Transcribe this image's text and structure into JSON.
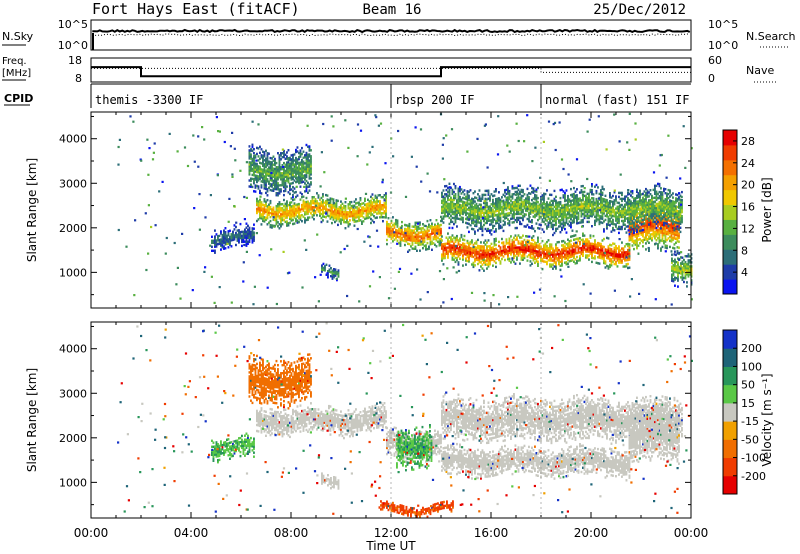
{
  "header": {
    "station": "Fort Hays East (fitACF)",
    "beam": "Beam 16",
    "date": "25/Dec/2012"
  },
  "top_panels": {
    "nsky": {
      "left_label": "N.Sky",
      "right_label": "N.Search",
      "left_ticks": [
        "10^5",
        "10^0"
      ],
      "right_ticks": [
        "10^5",
        "10^0"
      ]
    },
    "freq": {
      "left_label_1": "Freq.",
      "left_label_2": "[MHz]",
      "right_label": "Nave",
      "left_ticks": [
        "18",
        "8"
      ],
      "right_ticks": [
        "60",
        "0"
      ],
      "freq_steps": [
        {
          "start_h": 0.0,
          "end_h": 2.0,
          "mhz": 14.2
        },
        {
          "start_h": 2.0,
          "end_h": 14.0,
          "mhz": 10.4
        },
        {
          "start_h": 14.0,
          "end_h": 24.0,
          "mhz": 14.2
        }
      ],
      "nave_steps": [
        {
          "start_h": 0.0,
          "end_h": 2.0,
          "value": 34
        },
        {
          "start_h": 2.0,
          "end_h": 18.0,
          "value": 34
        },
        {
          "start_h": 18.0,
          "end_h": 24.0,
          "value": 24
        }
      ]
    },
    "cpid": {
      "label": "CPID",
      "segments": [
        {
          "start_h": 0.0,
          "text": "themis -3300 IF"
        },
        {
          "start_h": 12.0,
          "text": "rbsp 200 IF"
        },
        {
          "start_h": 18.0,
          "text": "normal (fast) 151 IF"
        }
      ]
    }
  },
  "chart_data": [
    {
      "type": "heatmap",
      "title": "",
      "xlabel": "Time UT",
      "ylabel": "Slant Range [km]",
      "xlim": [
        0,
        24
      ],
      "ylim": [
        200,
        4600
      ],
      "yticks": [
        "1000",
        "2000",
        "3000",
        "4000"
      ],
      "xticks": [
        "00:00",
        "04:00",
        "08:00",
        "12:00",
        "16:00",
        "20:00",
        "00:00"
      ],
      "colorbar": {
        "label": "Power [dB]",
        "ticks": [
          "4",
          "8",
          "12",
          "16",
          "20",
          "24",
          "28"
        ],
        "range": [
          0,
          30
        ],
        "colors": [
          "#0a14f0",
          "#1e3ca8",
          "#2c6e78",
          "#3c8c5c",
          "#58b040",
          "#a8cc20",
          "#f0c800",
          "#f4a000",
          "#f47000",
          "#f03c00",
          "#e60000"
        ]
      },
      "echo_regions": [
        {
          "t0": 6.6,
          "t1": 11.8,
          "r_lo": 2050,
          "r_hi": 2700,
          "peak": 22
        },
        {
          "t0": 11.8,
          "t1": 14.0,
          "r_lo": 1500,
          "r_hi": 2200,
          "peak": 24
        },
        {
          "t0": 14.0,
          "t1": 21.5,
          "r_lo": 1100,
          "r_hi": 1800,
          "peak": 28
        },
        {
          "t0": 21.5,
          "t1": 23.5,
          "r_lo": 1400,
          "r_hi": 2600,
          "peak": 26
        },
        {
          "t0": 14.0,
          "t1": 23.6,
          "r_lo": 1900,
          "r_hi": 2900,
          "peak": 14
        },
        {
          "t0": 6.3,
          "t1": 8.8,
          "r_lo": 2700,
          "r_hi": 3800,
          "peak": 12
        },
        {
          "t0": 4.8,
          "t1": 6.5,
          "r_lo": 1500,
          "r_hi": 2000,
          "peak": 7
        },
        {
          "t0": 9.2,
          "t1": 9.9,
          "r_lo": 850,
          "r_hi": 1150,
          "peak": 10
        },
        {
          "t0": 23.2,
          "t1": 24.0,
          "r_lo": 700,
          "r_hi": 1500,
          "peak": 16
        }
      ]
    },
    {
      "type": "heatmap",
      "title": "",
      "xlabel": "Time UT",
      "ylabel": "Slant Range [km]",
      "xlim": [
        0,
        24
      ],
      "ylim": [
        200,
        4600
      ],
      "yticks": [
        "1000",
        "2000",
        "3000",
        "4000"
      ],
      "xticks": [
        "00:00",
        "04:00",
        "08:00",
        "12:00",
        "16:00",
        "20:00",
        "00:00"
      ],
      "colorbar": {
        "label": "Velocity [m s⁻¹]",
        "ticks": [
          "200",
          "100",
          "50",
          "15",
          "-15",
          "-50",
          "-100",
          "-200"
        ],
        "range": [
          -250,
          250
        ],
        "colors": [
          "#1432c8",
          "#1e6478",
          "#28965a",
          "#5ac846",
          "#c8c8c0",
          "#f0a000",
          "#f06e00",
          "#f03c00",
          "#e60000"
        ]
      },
      "echo_regions": [
        {
          "t0": 6.6,
          "t1": 11.8,
          "r_lo": 2050,
          "r_hi": 2700,
          "vel": 0
        },
        {
          "t0": 11.8,
          "t1": 14.0,
          "r_lo": 1500,
          "r_hi": 2200,
          "vel": 0
        },
        {
          "t0": 14.0,
          "t1": 21.5,
          "r_lo": 1100,
          "r_hi": 1800,
          "vel": 0
        },
        {
          "t0": 21.5,
          "t1": 23.5,
          "r_lo": 1400,
          "r_hi": 2600,
          "vel": 0
        },
        {
          "t0": 14.0,
          "t1": 23.6,
          "r_lo": 1900,
          "r_hi": 2900,
          "vel": 0
        },
        {
          "t0": 6.3,
          "t1": 8.8,
          "r_lo": 2700,
          "r_hi": 3800,
          "vel": -60
        },
        {
          "t0": 4.8,
          "t1": 6.5,
          "r_lo": 1500,
          "r_hi": 2000,
          "vel": 30
        },
        {
          "t0": 12.2,
          "t1": 13.6,
          "r_lo": 1300,
          "r_hi": 2300,
          "vel": 30
        },
        {
          "t0": 9.2,
          "t1": 9.9,
          "r_lo": 850,
          "r_hi": 1150,
          "vel": 0
        },
        {
          "t0": 11.5,
          "t1": 14.5,
          "r_lo": 250,
          "r_hi": 500,
          "vel": -80
        }
      ]
    }
  ]
}
